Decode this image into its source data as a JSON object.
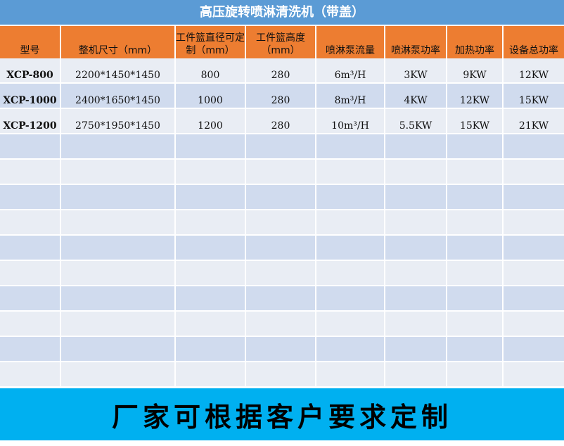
{
  "title": "高压旋转喷淋清洗机（带盖）",
  "columns": [
    "型号",
    "整机尺寸（mm）",
    "工件篮直径可定制（mm）",
    "工件篮高度（mm）",
    "喷淋泵流量",
    "喷淋泵功率",
    "加热功率",
    "设备总功率"
  ],
  "rows": [
    [
      "XCP-800",
      "2200*1450*1450",
      "800",
      "280",
      "6m³/H",
      "3KW",
      "9KW",
      "12KW"
    ],
    [
      "XCP-1000",
      "2400*1650*1450",
      "1000",
      "280",
      "8m³/H",
      "4KW",
      "12KW",
      "15KW"
    ],
    [
      "XCP-1200",
      "2750*1950*1450",
      "1200",
      "280",
      "10m³/H",
      "5.5KW",
      "15KW",
      "21KW"
    ]
  ],
  "empty_row_count": 10,
  "colors": {
    "title_bg": "#5b9bd5",
    "header_bg": "#ed7d31",
    "row_light": "#e9edf4",
    "row_dark": "#d0dbee",
    "footer_bg": "#00b0f0"
  },
  "footer": "厂家可根据客户要求定制"
}
